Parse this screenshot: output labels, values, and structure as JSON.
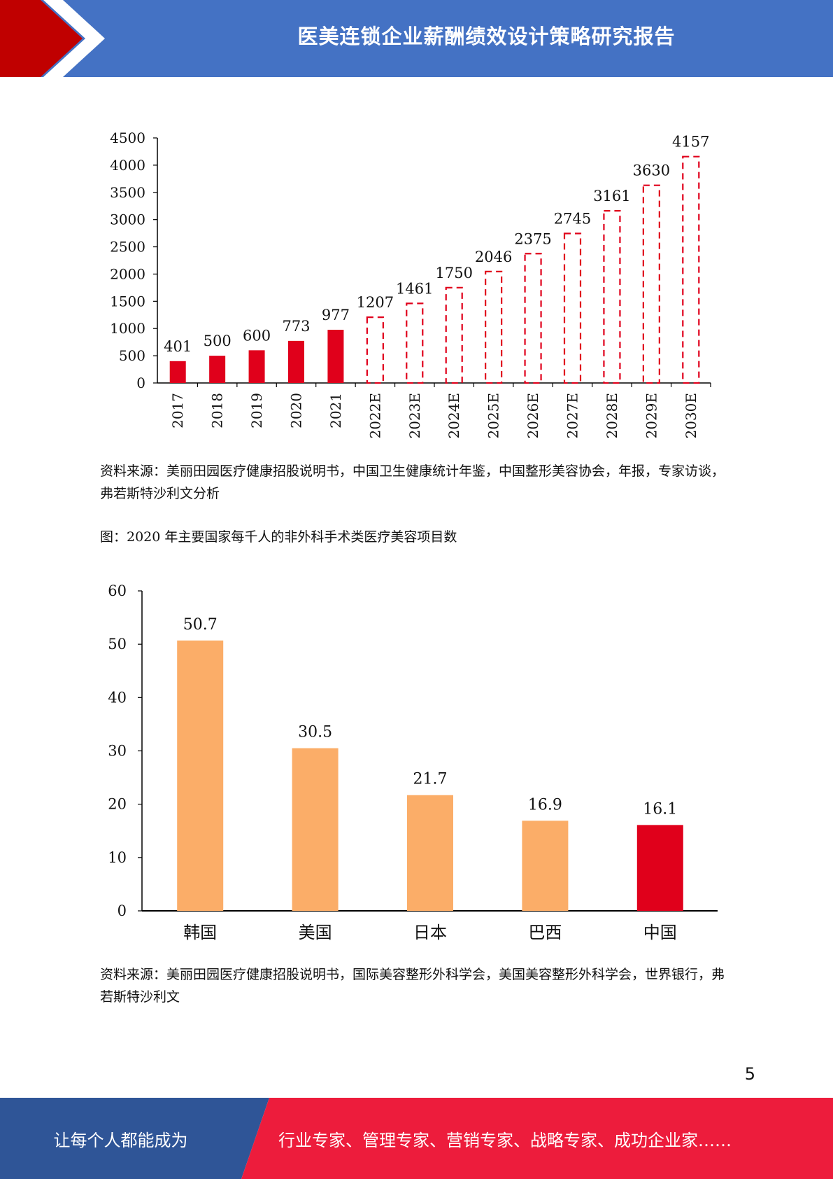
{
  "header": {
    "title": "医美连锁企业薪酬绩效设计策略研究报告",
    "colors": {
      "band": "#4472c4",
      "arrow": "#c00000"
    }
  },
  "chart_data": [
    {
      "type": "bar",
      "categories": [
        "2017",
        "2018",
        "2019",
        "2020",
        "2021",
        "2022E",
        "2023E",
        "2024E",
        "2025E",
        "2026E",
        "2027E",
        "2028E",
        "2029E",
        "2030E"
      ],
      "values": [
        401,
        500,
        600,
        773,
        977,
        1207,
        1461,
        1750,
        2046,
        2375,
        2745,
        3161,
        3630,
        4157
      ],
      "estimated": [
        false,
        false,
        false,
        false,
        false,
        true,
        true,
        true,
        true,
        true,
        true,
        true,
        true,
        true
      ],
      "yticks": [
        0,
        500,
        1000,
        1500,
        2000,
        2500,
        3000,
        3500,
        4000,
        4500
      ],
      "ylim": [
        0,
        4500
      ],
      "colors": {
        "actual": "#e0001b",
        "estimate_outline": "#e0001b"
      }
    },
    {
      "type": "bar",
      "categories": [
        "韩国",
        "美国",
        "日本",
        "巴西",
        "中国"
      ],
      "values": [
        50.7,
        30.5,
        21.7,
        16.9,
        16.1
      ],
      "highlight": [
        false,
        false,
        false,
        false,
        true
      ],
      "yticks": [
        0,
        10,
        20,
        30,
        40,
        50,
        60
      ],
      "ylim": [
        0,
        60
      ],
      "colors": {
        "bar": "#fbad68",
        "highlight": "#e0001b"
      }
    }
  ],
  "text": {
    "source1": "资料来源：美丽田园医疗健康招股说明书，中国卫生健康统计年鉴，中国整形美容协会，年报，专家访谈，弗若斯特沙利文分析",
    "figure2_caption": "图：2020 年主要国家每千人的非外科手术类医疗美容项目数",
    "source2": "资料来源：美丽田园医疗健康招股说明书，国际美容整形外科学会，美国美容整形外科学会，世界银行，弗若斯特沙利文"
  },
  "page_number": "5",
  "footer": {
    "left_text": "让每个人都能成为",
    "right_text": "行业专家、管理专家、营销专家、战略专家、成功企业家……",
    "colors": {
      "left": "#2f5597",
      "right": "#ed1c3c"
    }
  }
}
